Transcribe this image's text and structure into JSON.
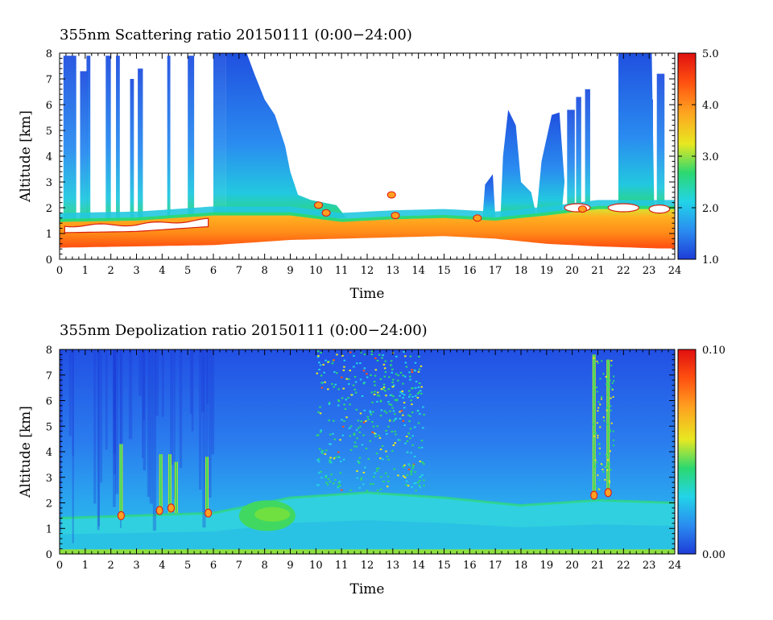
{
  "chart_data": [
    {
      "type": "heatmap",
      "title": "355nm Scattering ratio  20150111 (0:00−24:00)",
      "xlabel": "Time",
      "ylabel": "Altitude [km]",
      "xlim": [
        0,
        24
      ],
      "ylim": [
        0,
        8
      ],
      "x_ticks": [
        "0",
        "1",
        "2",
        "3",
        "4",
        "5",
        "6",
        "7",
        "8",
        "9",
        "10",
        "11",
        "12",
        "13",
        "14",
        "15",
        "16",
        "17",
        "18",
        "19",
        "20",
        "21",
        "22",
        "23",
        "24"
      ],
      "y_ticks": [
        "0",
        "1",
        "2",
        "3",
        "4",
        "5",
        "6",
        "7",
        "8"
      ],
      "colorbar": {
        "range": [
          1.0,
          5.0
        ],
        "tick_labels": [
          "1.0",
          "2.0",
          "3.0",
          "4.0",
          "5.0"
        ],
        "colors": [
          "#1e3cd8",
          "#2a8cf0",
          "#22d4e8",
          "#2cd870",
          "#e8e820",
          "#ffa020",
          "#ff5010",
          "#e01010"
        ]
      },
      "features": {
        "low_layer": [
          {
            "t": 0,
            "bottom": 0.45,
            "top": 1.45
          },
          {
            "t": 3,
            "bottom": 0.5,
            "top": 1.5
          },
          {
            "t": 6,
            "bottom": 0.55,
            "top": 1.7
          },
          {
            "t": 9,
            "bottom": 0.75,
            "top": 1.7
          },
          {
            "t": 11,
            "bottom": 0.8,
            "top": 1.45
          },
          {
            "t": 13,
            "bottom": 0.85,
            "top": 1.55
          },
          {
            "t": 15,
            "bottom": 0.9,
            "top": 1.6
          },
          {
            "t": 17,
            "bottom": 0.8,
            "top": 1.5
          },
          {
            "t": 19,
            "bottom": 0.6,
            "top": 1.7
          },
          {
            "t": 21,
            "bottom": 0.5,
            "top": 1.95
          },
          {
            "t": 24,
            "bottom": 0.4,
            "top": 1.95
          }
        ],
        "plume_top_km": [
          {
            "t": 6.5,
            "top": 8.0
          },
          {
            "t": 7.5,
            "top": 7.5
          },
          {
            "t": 8.5,
            "top": 5.5
          },
          {
            "t": 9.5,
            "top": 2.2
          },
          {
            "t": 11,
            "top": 1.6
          },
          {
            "t": 16.5,
            "top": 3.2
          },
          {
            "t": 17.5,
            "top": 5.8
          },
          {
            "t": 19.3,
            "top": 5.8
          },
          {
            "t": 21.5,
            "top": 8.0
          },
          {
            "t": 23.2,
            "top": 8.0
          }
        ]
      }
    },
    {
      "type": "heatmap",
      "title": "355nm Depolization ratio  20150111 (0:00−24:00)",
      "xlabel": "Time",
      "ylabel": "Altitude [km]",
      "xlim": [
        0,
        24
      ],
      "ylim": [
        0,
        8
      ],
      "x_ticks": [
        "0",
        "1",
        "2",
        "3",
        "4",
        "5",
        "6",
        "7",
        "8",
        "9",
        "10",
        "11",
        "12",
        "13",
        "14",
        "15",
        "16",
        "17",
        "18",
        "19",
        "20",
        "21",
        "22",
        "23",
        "24"
      ],
      "y_ticks": [
        "0",
        "1",
        "2",
        "3",
        "4",
        "5",
        "6",
        "7",
        "8"
      ],
      "colorbar": {
        "range": [
          0.0,
          0.1
        ],
        "tick_labels": [
          "0.00",
          "0.10"
        ],
        "colors": [
          "#1e3cd8",
          "#2a8cf0",
          "#22d4e8",
          "#2cd870",
          "#e8e820",
          "#ffa020",
          "#ff5010",
          "#e01010"
        ]
      },
      "features": {
        "boundary_layer_top": [
          {
            "t": 0,
            "top": 1.4
          },
          {
            "t": 6,
            "top": 1.6
          },
          {
            "t": 7,
            "top": 1.8
          },
          {
            "t": 9,
            "top": 2.2
          },
          {
            "t": 12,
            "top": 2.4
          },
          {
            "t": 15,
            "top": 2.2
          },
          {
            "t": 18,
            "top": 1.9
          },
          {
            "t": 21,
            "top": 2.1
          },
          {
            "t": 24,
            "top": 2.0
          }
        ],
        "dust_patch": {
          "t_start": 7.0,
          "t_end": 9.2,
          "alt_low": 0.9,
          "alt_high": 2.1
        }
      }
    }
  ]
}
